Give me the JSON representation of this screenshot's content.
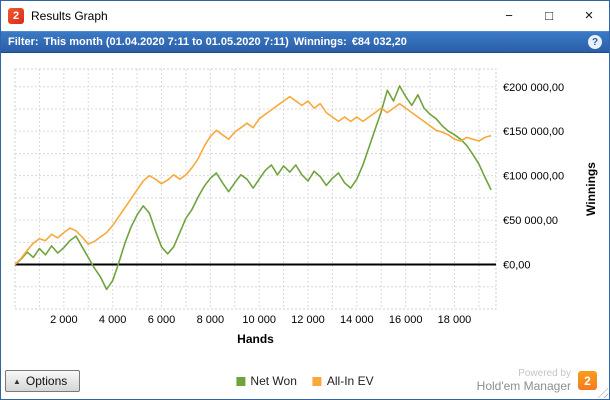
{
  "window": {
    "title": "Results Graph",
    "app_icon_text": "2",
    "controls": {
      "minimize": "−",
      "maximize": "□",
      "close": "×"
    }
  },
  "filter_bar": {
    "filter_label": "Filter:",
    "filter_value": "This month (01.04.2020 7:11 to 01.05.2020 7:11)",
    "winnings_label": "Winnings:",
    "winnings_value": "€84 032,20",
    "help_glyph": "?"
  },
  "chart_data": {
    "type": "line",
    "title": "",
    "xlabel": "Hands",
    "ylabel": "Winnings",
    "xlim": [
      0,
      19700
    ],
    "ylim": [
      -50000,
      220000
    ],
    "x_step": 250,
    "x_tick_interval": 2000,
    "x_tick_labels": [
      "2 000",
      "4 000",
      "6 000",
      "8 000",
      "10 000",
      "12 000",
      "14 000",
      "16 000",
      "18 000"
    ],
    "y_tick_values": [
      0,
      50000,
      100000,
      150000,
      200000
    ],
    "y_tick_labels": [
      "€0,00",
      "€50 000,00",
      "€100 000,00",
      "€150 000,00",
      "€200 000,00"
    ],
    "grid": {
      "x_minor": 1000,
      "y_minor": 25000,
      "visible": true,
      "style": "dashed"
    },
    "zero_line": 0,
    "legend_position": "bottom",
    "series": [
      {
        "name": "Net Won",
        "color": "#70a33e",
        "values": [
          0,
          6000,
          14000,
          8000,
          18000,
          11000,
          21000,
          13000,
          19000,
          27000,
          32000,
          20000,
          8000,
          -4000,
          -14000,
          -28000,
          -18000,
          2000,
          24000,
          42000,
          56000,
          66000,
          58000,
          38000,
          20000,
          12000,
          20000,
          36000,
          52000,
          62000,
          76000,
          88000,
          97000,
          103000,
          92000,
          82000,
          92000,
          101000,
          96000,
          86000,
          96000,
          106000,
          112000,
          101000,
          111000,
          104000,
          112000,
          101000,
          94000,
          105000,
          99000,
          89000,
          97000,
          103000,
          92000,
          86000,
          96000,
          112000,
          132000,
          152000,
          172000,
          196000,
          184000,
          201000,
          189000,
          179000,
          191000,
          176000,
          169000,
          164000,
          156000,
          150000,
          146000,
          141000,
          134000,
          124000,
          113000,
          98000,
          84032
        ]
      },
      {
        "name": "All-In EV",
        "color": "#f8a93b",
        "values": [
          0,
          7000,
          16000,
          24000,
          29000,
          27000,
          34000,
          30000,
          36000,
          41000,
          38000,
          31000,
          23000,
          26000,
          31000,
          36000,
          44000,
          54000,
          64000,
          74000,
          84000,
          94000,
          100000,
          96000,
          91000,
          95000,
          101000,
          96000,
          101000,
          109000,
          119000,
          133000,
          144000,
          151000,
          146000,
          141000,
          149000,
          154000,
          159000,
          154000,
          164000,
          169000,
          174000,
          179000,
          184000,
          189000,
          184000,
          179000,
          184000,
          176000,
          181000,
          171000,
          166000,
          161000,
          166000,
          161000,
          166000,
          161000,
          166000,
          171000,
          176000,
          171000,
          176000,
          181000,
          176000,
          171000,
          166000,
          161000,
          156000,
          151000,
          149000,
          146000,
          141000,
          139000,
          143000,
          141000,
          139000,
          143000,
          145000
        ]
      }
    ]
  },
  "footer": {
    "options_label": "Options",
    "options_arrow": "▲",
    "powered_by": "Powered by",
    "brand": "Hold'em Manager",
    "brand_badge": "2"
  }
}
